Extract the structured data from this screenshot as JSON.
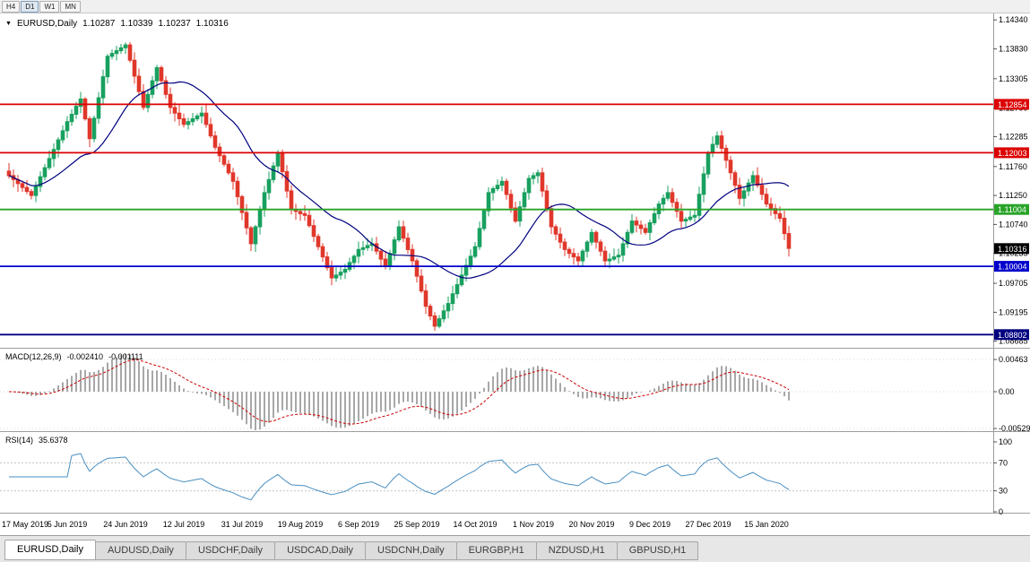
{
  "toolbar": {
    "timeframes": [
      {
        "label": "H4",
        "active": false
      },
      {
        "label": "D1",
        "active": true
      },
      {
        "label": "W1",
        "active": false
      },
      {
        "label": "MN",
        "active": false
      }
    ]
  },
  "icons": {
    "chart_dropdown": "▼"
  },
  "chart_header": {
    "symbol": "EURUSD,Daily",
    "open": "1.10287",
    "high": "1.10339",
    "low": "1.10237",
    "close": "1.10316"
  },
  "indicators": {
    "macd": {
      "name": "MACD(12,26,9)",
      "main_value": "-0.002410",
      "signal_value": "-0.001111"
    },
    "rsi": {
      "name": "RSI(14)",
      "value": "35.6378"
    }
  },
  "colors": {
    "candle_up": "#18a05f",
    "candle_down": "#e0372b",
    "ma": "#000080",
    "macd_hist": "#a8a8a8",
    "macd_signal": "#cc0000",
    "rsi": "#4a8fc2",
    "current_badge": "#000000"
  },
  "chart_data": {
    "type": "candlestick",
    "symbol": "EURUSD",
    "timeframe": "Daily",
    "candles_per_label": 13,
    "x_labels": [
      "17 May 2019",
      "5 Jun 2019",
      "24 Jun 2019",
      "12 Jul 2019",
      "31 Jul 2019",
      "19 Aug 2019",
      "6 Sep 2019",
      "25 Sep 2019",
      "14 Oct 2019",
      "1 Nov 2019",
      "20 Nov 2019",
      "9 Dec 2019",
      "27 Dec 2019",
      "15 Jan 2020"
    ],
    "closes": [
      1.116,
      1.1153,
      1.1146,
      1.1139,
      1.1132,
      1.1125,
      1.1141,
      1.1158,
      1.1174,
      1.119,
      1.1206,
      1.1223,
      1.1239,
      1.1255,
      1.1268,
      1.1282,
      1.1295,
      1.126,
      1.1225,
      1.1261,
      1.1297,
      1.1334,
      1.137,
      1.1375,
      1.138,
      1.1385,
      1.139,
      1.1363,
      1.1335,
      1.1308,
      1.128,
      1.1303,
      1.1327,
      1.135,
      1.1327,
      1.1303,
      1.128,
      1.127,
      1.126,
      1.125,
      1.1255,
      1.126,
      1.1265,
      1.127,
      1.125,
      1.123,
      1.121,
      1.1195,
      1.118,
      1.1165,
      1.115,
      1.1123,
      1.1095,
      1.1068,
      1.104,
      1.107,
      1.11,
      1.113,
      1.1153,
      1.1177,
      1.12,
      1.1167,
      1.1133,
      1.11,
      1.1097,
      1.1093,
      1.109,
      1.1072,
      1.1053,
      1.1035,
      1.1017,
      1.0998,
      1.098,
      1.0985,
      1.099,
      1.0995,
      1.1007,
      1.1018,
      1.103,
      1.1033,
      1.1037,
      1.104,
      1.1027,
      1.1013,
      1.1,
      1.1023,
      1.1047,
      1.107,
      1.105,
      1.103,
      1.101,
      1.0983,
      1.0957,
      1.093,
      1.0913,
      1.0895,
      1.0908,
      1.0922,
      1.0935,
      1.0952,
      1.0968,
      1.0985,
      1.1002,
      1.1018,
      1.1035,
      1.1067,
      1.1098,
      1.113,
      1.1137,
      1.1143,
      1.115,
      1.1127,
      1.1103,
      1.108,
      1.1105,
      1.113,
      1.1155,
      1.116,
      1.1165,
      1.1133,
      1.1102,
      1.107,
      1.1057,
      1.1043,
      1.103,
      1.1023,
      1.1017,
      1.101,
      1.1027,
      1.1043,
      1.106,
      1.1043,
      1.1027,
      1.101,
      1.1013,
      1.1017,
      1.102,
      1.104,
      1.106,
      1.108,
      1.1073,
      1.1067,
      1.106,
      1.1077,
      1.1093,
      1.111,
      1.112,
      1.113,
      1.1113,
      1.1097,
      1.108,
      1.1083,
      1.1087,
      1.109,
      1.1127,
      1.1163,
      1.12,
      1.1215,
      1.123,
      1.1208,
      1.1187,
      1.1165,
      1.1143,
      1.112,
      1.1133,
      1.1147,
      1.116,
      1.1143,
      1.1127,
      1.111,
      1.1102,
      1.1093,
      1.1085,
      1.1058,
      1.1032
    ],
    "y_ticks_main": [
      {
        "v": 1.1434,
        "t": "1.14340"
      },
      {
        "v": 1.1383,
        "t": "1.13830"
      },
      {
        "v": 1.13305,
        "t": "1.13305"
      },
      {
        "v": 1.1279,
        "t": "1.12790"
      },
      {
        "v": 1.12285,
        "t": "1.12285"
      },
      {
        "v": 1.1176,
        "t": "1.11760"
      },
      {
        "v": 1.1125,
        "t": "1.11250"
      },
      {
        "v": 1.1074,
        "t": "1.10740"
      },
      {
        "v": 1.10235,
        "t": "1.10235"
      },
      {
        "v": 1.09705,
        "t": "1.09705"
      },
      {
        "v": 1.09195,
        "t": "1.09195"
      },
      {
        "v": 1.08685,
        "t": "1.08685"
      }
    ],
    "levels": [
      {
        "price": 1.12854,
        "label": "1.12854",
        "color": "#dc0000"
      },
      {
        "price": 1.12003,
        "label": "1.12003",
        "color": "#dc0000"
      },
      {
        "price": 1.11004,
        "label": "1.11004",
        "color": "#28a428"
      },
      {
        "price": 1.10004,
        "label": "1.10004",
        "color": "#0000cd"
      },
      {
        "price": 1.08802,
        "label": "1.08802",
        "color": "#000080"
      }
    ],
    "current_price": {
      "value": 1.10316,
      "label": "1.10316"
    },
    "ma": {
      "period": 20
    },
    "macd": {
      "params": [
        12,
        26,
        9
      ],
      "y_ticks": [
        {
          "v": 0.00463,
          "t": "0.00463"
        },
        {
          "v": 0.0,
          "t": "0.00"
        },
        {
          "v": -0.00529,
          "t": "-0.00529"
        }
      ]
    },
    "rsi": {
      "period": 14,
      "levels": [
        70,
        30
      ],
      "y_ticks": [
        {
          "v": 100,
          "t": "100"
        },
        {
          "v": 70,
          "t": "70"
        },
        {
          "v": 30,
          "t": "30"
        },
        {
          "v": 0,
          "t": "0"
        }
      ]
    }
  },
  "tabs": [
    {
      "label": "EURUSD,Daily",
      "active": true
    },
    {
      "label": "AUDUSD,Daily",
      "active": false
    },
    {
      "label": "USDCHF,Daily",
      "active": false
    },
    {
      "label": "USDCAD,Daily",
      "active": false
    },
    {
      "label": "USDCNH,Daily",
      "active": false
    },
    {
      "label": "EURGBP,H1",
      "active": false
    },
    {
      "label": "NZDUSD,H1",
      "active": false
    },
    {
      "label": "GBPUSD,H1",
      "active": false
    }
  ]
}
